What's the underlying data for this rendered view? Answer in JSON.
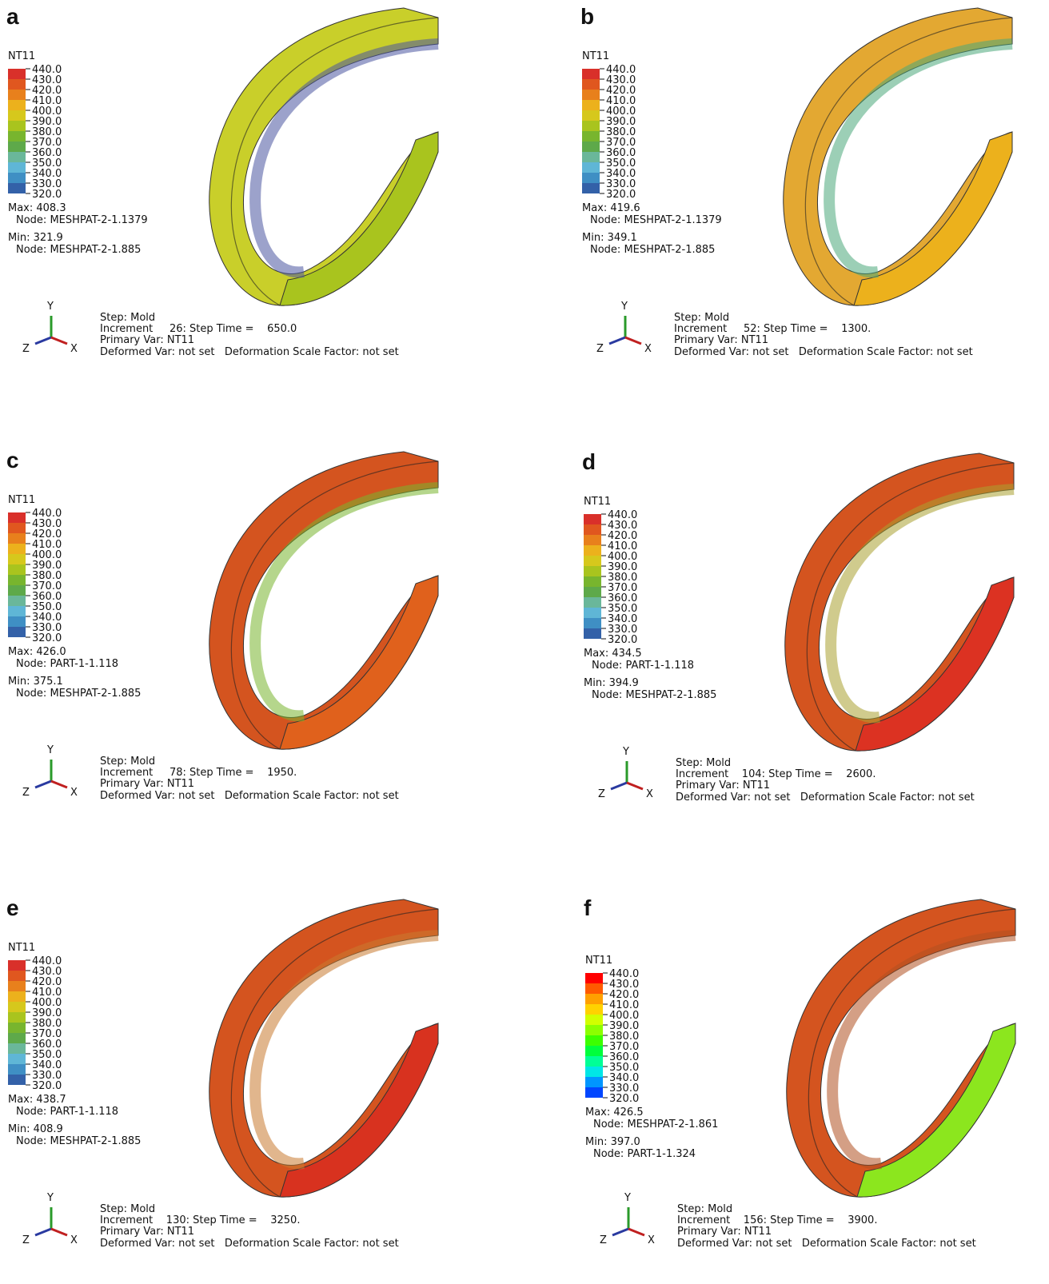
{
  "panels": [
    {
      "label": "a",
      "legend_title": "NT11",
      "legend_ticks": [
        "440.0",
        "430.0",
        "420.0",
        "410.0",
        "400.0",
        "390.0",
        "380.0",
        "370.0",
        "360.0",
        "350.0",
        "340.0",
        "330.0",
        "320.0"
      ],
      "max": "Max: 408.3",
      "max_node": "Node: MESHPAT-2-1.1379",
      "min": "Min: 321.9",
      "min_node": "Node: MESHPAT-2-1.885",
      "triad": [
        "Y",
        "Z",
        "X"
      ],
      "step": "Step: Mold",
      "increment": "Increment     26: Step Time =    650.0",
      "primary": "Primary Var: NT11",
      "deformed": "Deformed Var: not set   Deformation Scale Factor: not set"
    },
    {
      "label": "b",
      "legend_title": "NT11",
      "legend_ticks": [
        "440.0",
        "430.0",
        "420.0",
        "410.0",
        "400.0",
        "390.0",
        "380.0",
        "370.0",
        "360.0",
        "350.0",
        "340.0",
        "330.0",
        "320.0"
      ],
      "max": "Max: 419.6",
      "max_node": "Node: MESHPAT-2-1.1379",
      "min": "Min: 349.1",
      "min_node": "Node: MESHPAT-2-1.885",
      "triad": [
        "Y",
        "Z",
        "X"
      ],
      "step": "Step: Mold",
      "increment": "Increment     52: Step Time =    1300.",
      "primary": "Primary Var: NT11",
      "deformed": "Deformed Var: not set   Deformation Scale Factor: not set"
    },
    {
      "label": "c",
      "legend_title": "NT11",
      "legend_ticks": [
        "440.0",
        "430.0",
        "420.0",
        "410.0",
        "400.0",
        "390.0",
        "380.0",
        "370.0",
        "360.0",
        "350.0",
        "340.0",
        "330.0",
        "320.0"
      ],
      "max": "Max: 426.0",
      "max_node": "Node: PART-1-1.118",
      "min": "Min: 375.1",
      "min_node": "Node: MESHPAT-2-1.885",
      "triad": [
        "Y",
        "Z",
        "X"
      ],
      "step": "Step: Mold",
      "increment": "Increment     78: Step Time =    1950.",
      "primary": "Primary Var: NT11",
      "deformed": "Deformed Var: not set   Deformation Scale Factor: not set"
    },
    {
      "label": "d",
      "legend_title": "NT11",
      "legend_ticks": [
        "440.0",
        "430.0",
        "420.0",
        "410.0",
        "400.0",
        "390.0",
        "380.0",
        "370.0",
        "360.0",
        "350.0",
        "340.0",
        "330.0",
        "320.0"
      ],
      "max": "Max: 434.5",
      "max_node": "Node: PART-1-1.118",
      "min": "Min: 394.9",
      "min_node": "Node: MESHPAT-2-1.885",
      "triad": [
        "Y",
        "Z",
        "X"
      ],
      "step": "Step: Mold",
      "increment": "Increment    104: Step Time =    2600.",
      "primary": "Primary Var: NT11",
      "deformed": "Deformed Var: not set   Deformation Scale Factor: not set"
    },
    {
      "label": "e",
      "legend_title": "NT11",
      "legend_ticks": [
        "440.0",
        "430.0",
        "420.0",
        "410.0",
        "400.0",
        "390.0",
        "380.0",
        "370.0",
        "360.0",
        "350.0",
        "340.0",
        "330.0",
        "320.0"
      ],
      "max": "Max: 438.7",
      "max_node": "Node: PART-1-1.118",
      "min": "Min: 408.9",
      "min_node": "Node: MESHPAT-2-1.885",
      "triad": [
        "Y",
        "Z",
        "X"
      ],
      "step": "Step: Mold",
      "increment": "Increment    130: Step Time =    3250.",
      "primary": "Primary Var: NT11",
      "deformed": "Deformed Var: not set   Deformation Scale Factor: not set"
    },
    {
      "label": "f",
      "legend_title": "NT11",
      "legend_ticks": [
        "440.0",
        "430.0",
        "420.0",
        "410.0",
        "400.0",
        "390.0",
        "380.0",
        "370.0",
        "360.0",
        "350.0",
        "340.0",
        "330.0",
        "320.0"
      ],
      "max": "Max: 426.5",
      "max_node": "Node: MESHPAT-2-1.861",
      "min": "Min: 397.0",
      "min_node": "Node: PART-1-1.324",
      "triad": [
        "Y",
        "Z",
        "X"
      ],
      "step": "Step: Mold",
      "increment": "Increment    156: Step Time =    3900.",
      "primary": "Primary Var: NT11",
      "deformed": "Deformed Var: not set   Deformation Scale Factor: not set"
    }
  ]
}
